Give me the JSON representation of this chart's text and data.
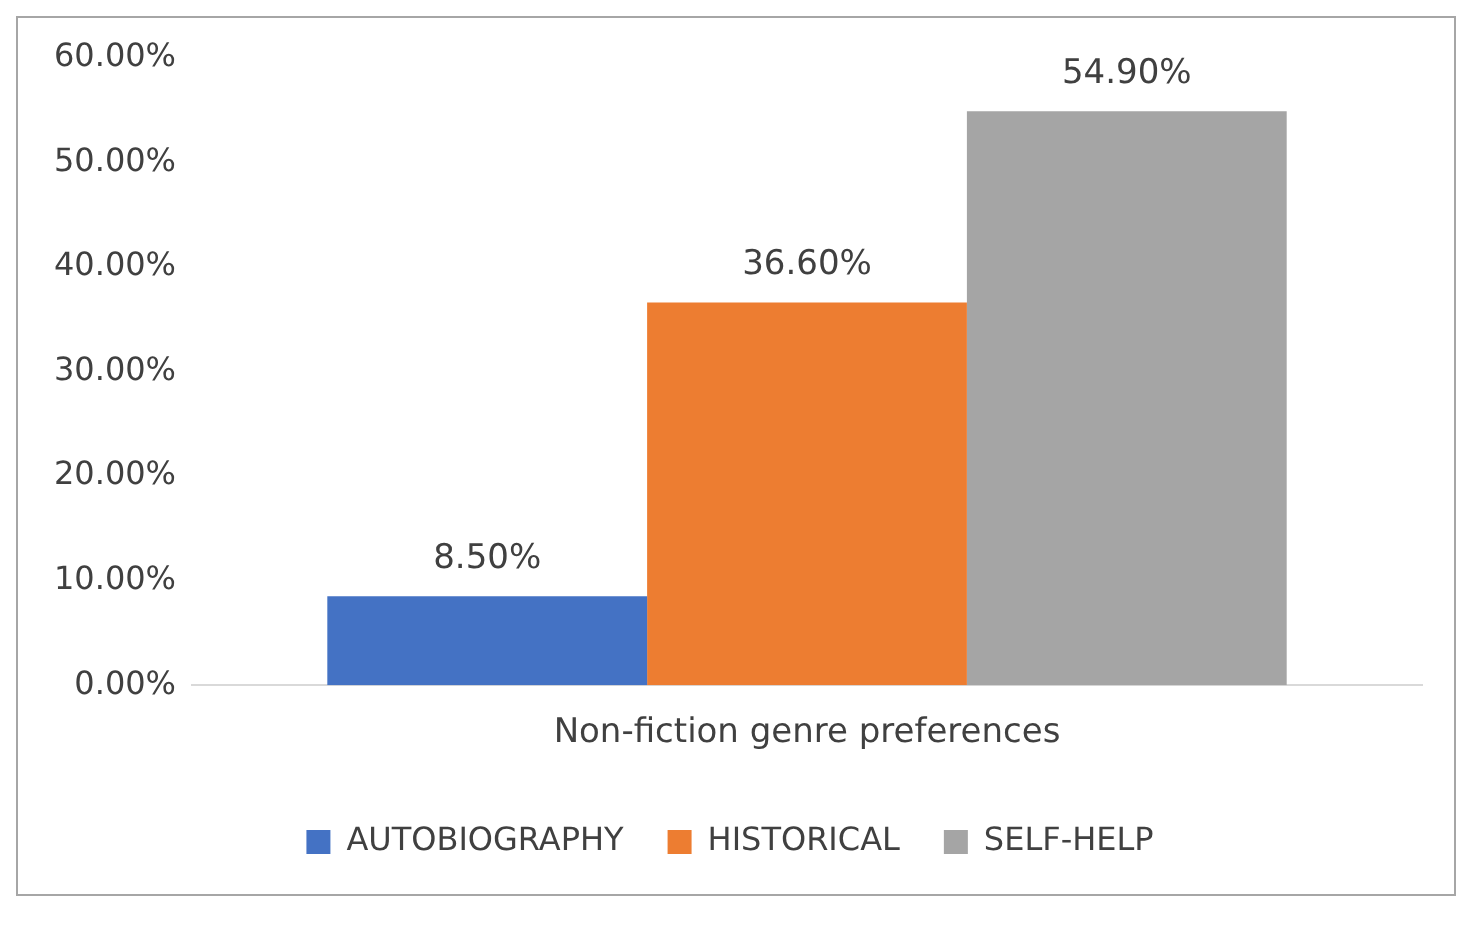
{
  "chart_data": {
    "type": "bar",
    "categories": [
      "Non-fiction genre preferences"
    ],
    "series": [
      {
        "name": "AUTOBIOGRAPHY",
        "color": "#4472c4",
        "values": [
          8.5
        ],
        "value_labels": [
          "8.50%"
        ]
      },
      {
        "name": "HISTORICAL",
        "color": "#ed7d31",
        "values": [
          36.6
        ],
        "value_labels": [
          "36.60%"
        ]
      },
      {
        "name": "SELF-HELP",
        "color": "#a5a5a5",
        "values": [
          54.9
        ],
        "value_labels": [
          "54.90%"
        ]
      }
    ],
    "ylim": [
      0,
      60
    ],
    "yticks": [
      {
        "value": 0,
        "label": "0.00%"
      },
      {
        "value": 10,
        "label": "10.00%"
      },
      {
        "value": 20,
        "label": "20.00%"
      },
      {
        "value": 30,
        "label": "30.00%"
      },
      {
        "value": 40,
        "label": "40.00%"
      },
      {
        "value": 50,
        "label": "50.00%"
      },
      {
        "value": 60,
        "label": "60.00%"
      }
    ],
    "grid": false,
    "legend": "bottom"
  }
}
